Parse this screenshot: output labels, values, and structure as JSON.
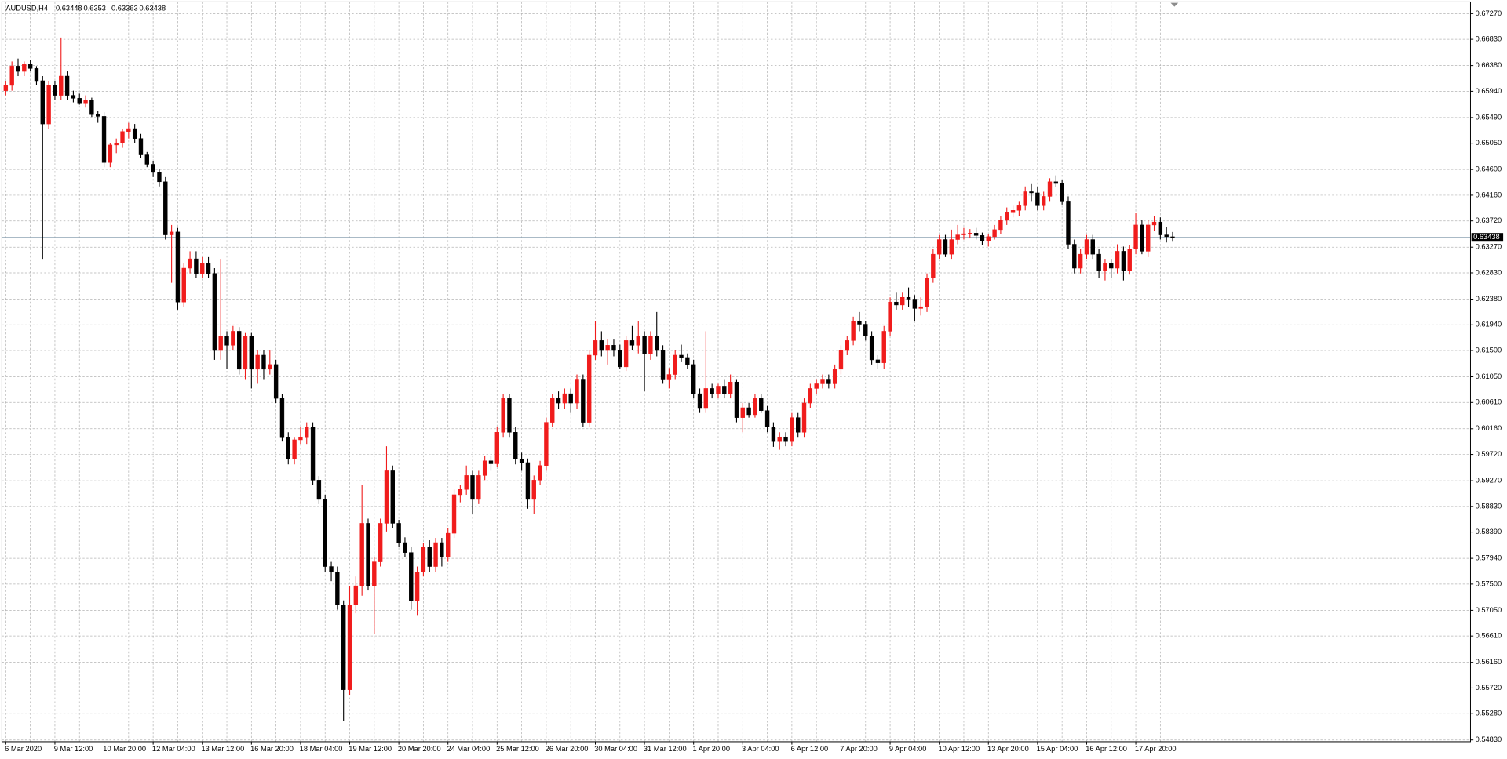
{
  "chart_data": {
    "type": "candlestick",
    "symbol": "AUDUSD,H4",
    "up_color": "#f01c1c",
    "down_color": "#000000",
    "last_line_color": "#8ea4b4",
    "grid": true,
    "ylim": [
      0.548,
      0.6747
    ],
    "yticks": [
      {
        "value": 0.6727,
        "label": "0.67270"
      },
      {
        "value": 0.6683,
        "label": "0.66830"
      },
      {
        "value": 0.6638,
        "label": "0.66380"
      },
      {
        "value": 0.6594,
        "label": "0.65940"
      },
      {
        "value": 0.6549,
        "label": "0.65490"
      },
      {
        "value": 0.6505,
        "label": "0.65050"
      },
      {
        "value": 0.646,
        "label": "0.64600"
      },
      {
        "value": 0.6416,
        "label": "0.64160"
      },
      {
        "value": 0.6372,
        "label": "0.63720"
      },
      {
        "value": 0.6327,
        "label": "0.63270"
      },
      {
        "value": 0.6283,
        "label": "0.62830"
      },
      {
        "value": 0.6238,
        "label": "0.62380"
      },
      {
        "value": 0.6194,
        "label": "0.61940"
      },
      {
        "value": 0.615,
        "label": "0.61500"
      },
      {
        "value": 0.6105,
        "label": "0.61050"
      },
      {
        "value": 0.6061,
        "label": "0.60610"
      },
      {
        "value": 0.6016,
        "label": "0.60160"
      },
      {
        "value": 0.5972,
        "label": "0.59720"
      },
      {
        "value": 0.5927,
        "label": "0.59270"
      },
      {
        "value": 0.5883,
        "label": "0.58830"
      },
      {
        "value": 0.5839,
        "label": "0.58390"
      },
      {
        "value": 0.5794,
        "label": "0.57940"
      },
      {
        "value": 0.575,
        "label": "0.57500"
      },
      {
        "value": 0.5705,
        "label": "0.57050"
      },
      {
        "value": 0.5661,
        "label": "0.56610"
      },
      {
        "value": 0.5616,
        "label": "0.56160"
      },
      {
        "value": 0.5572,
        "label": "0.55720"
      },
      {
        "value": 0.5528,
        "label": "0.55280"
      },
      {
        "value": 0.5483,
        "label": "0.54830"
      }
    ],
    "categories": [
      "6 Mar 2020",
      null,
      null,
      null,
      null,
      null,
      null,
      null,
      "9 Mar 12:00",
      null,
      null,
      null,
      null,
      null,
      null,
      null,
      "10 Mar 20:00",
      null,
      null,
      null,
      null,
      null,
      null,
      null,
      "12 Mar 04:00",
      null,
      null,
      null,
      null,
      null,
      null,
      null,
      "13 Mar 12:00",
      null,
      null,
      null,
      null,
      null,
      null,
      null,
      "16 Mar 20:00",
      null,
      null,
      null,
      null,
      null,
      null,
      null,
      "18 Mar 04:00",
      null,
      null,
      null,
      null,
      null,
      null,
      null,
      "19 Mar 12:00",
      null,
      null,
      null,
      null,
      null,
      null,
      null,
      "20 Mar 20:00",
      null,
      null,
      null,
      null,
      null,
      null,
      null,
      "24 Mar 04:00",
      null,
      null,
      null,
      null,
      null,
      null,
      null,
      "25 Mar 12:00",
      null,
      null,
      null,
      null,
      null,
      null,
      null,
      "26 Mar 20:00",
      null,
      null,
      null,
      null,
      null,
      null,
      null,
      "30 Mar 04:00",
      null,
      null,
      null,
      null,
      null,
      null,
      null,
      "31 Mar 12:00",
      null,
      null,
      null,
      null,
      null,
      null,
      null,
      "1 Apr 20:00",
      null,
      null,
      null,
      null,
      null,
      null,
      null,
      "3 Apr 04:00",
      null,
      null,
      null,
      null,
      null,
      null,
      null,
      "6 Apr 12:00",
      null,
      null,
      null,
      null,
      null,
      null,
      null,
      "7 Apr 20:00",
      null,
      null,
      null,
      null,
      null,
      null,
      null,
      "9 Apr 04:00",
      null,
      null,
      null,
      null,
      null,
      null,
      null,
      "10 Apr 12:00",
      null,
      null,
      null,
      null,
      null,
      null,
      null,
      "13 Apr 20:00",
      null,
      null,
      null,
      null,
      null,
      null,
      null,
      "15 Apr 04:00",
      null,
      null,
      null,
      null,
      null,
      null,
      null,
      "16 Apr 12:00",
      null,
      null,
      null,
      null,
      null,
      null,
      null,
      "17 Apr 20:00",
      null,
      null,
      null,
      null,
      null,
      null
    ],
    "ohlc": [
      [
        0.6595,
        0.6612,
        0.6587,
        0.6604
      ],
      [
        0.6604,
        0.6645,
        0.6595,
        0.6637
      ],
      [
        0.6637,
        0.665,
        0.662,
        0.6628
      ],
      [
        0.6628,
        0.6645,
        0.662,
        0.664
      ],
      [
        0.664,
        0.6648,
        0.6628,
        0.6633
      ],
      [
        0.6633,
        0.6637,
        0.6604,
        0.6612
      ],
      [
        0.6612,
        0.662,
        0.6307,
        0.6538
      ],
      [
        0.6538,
        0.6612,
        0.653,
        0.6604
      ],
      [
        0.6604,
        0.6612,
        0.6579,
        0.6587
      ],
      [
        0.6587,
        0.6686,
        0.6579,
        0.662
      ],
      [
        0.662,
        0.6628,
        0.6579,
        0.6587
      ],
      [
        0.6587,
        0.6595,
        0.6575,
        0.6582
      ],
      [
        0.6582,
        0.659,
        0.6571,
        0.6574
      ],
      [
        0.6574,
        0.6587,
        0.6566,
        0.6579
      ],
      [
        0.6579,
        0.6583,
        0.655,
        0.6554
      ],
      [
        0.6554,
        0.656,
        0.654,
        0.6551
      ],
      [
        0.6551,
        0.6558,
        0.6464,
        0.6472
      ],
      [
        0.6472,
        0.6505,
        0.6464,
        0.6502
      ],
      [
        0.6502,
        0.6513,
        0.6488,
        0.6505
      ],
      [
        0.6505,
        0.653,
        0.6497,
        0.6525
      ],
      [
        0.6525,
        0.654,
        0.6513,
        0.653
      ],
      [
        0.653,
        0.6538,
        0.6505,
        0.6513
      ],
      [
        0.6513,
        0.6521,
        0.648,
        0.6485
      ],
      [
        0.6485,
        0.649,
        0.6464,
        0.6469
      ],
      [
        0.6469,
        0.6475,
        0.6447,
        0.6455
      ],
      [
        0.6455,
        0.646,
        0.6431,
        0.6439
      ],
      [
        0.6439,
        0.6447,
        0.634,
        0.6348
      ],
      [
        0.6348,
        0.6365,
        0.6266,
        0.6353
      ],
      [
        0.6353,
        0.636,
        0.622,
        0.6233
      ],
      [
        0.6233,
        0.6299,
        0.6225,
        0.6291
      ],
      [
        0.6291,
        0.632,
        0.6282,
        0.6307
      ],
      [
        0.6307,
        0.632,
        0.6274,
        0.6282
      ],
      [
        0.6282,
        0.631,
        0.6274,
        0.6299
      ],
      [
        0.6299,
        0.631,
        0.6274,
        0.6282
      ],
      [
        0.6282,
        0.6291,
        0.6134,
        0.615
      ],
      [
        0.615,
        0.6307,
        0.6134,
        0.6175
      ],
      [
        0.6175,
        0.6183,
        0.6118,
        0.6159
      ],
      [
        0.6159,
        0.6192,
        0.615,
        0.6183
      ],
      [
        0.6183,
        0.619,
        0.6109,
        0.6118
      ],
      [
        0.6118,
        0.618,
        0.6101,
        0.6175
      ],
      [
        0.6175,
        0.618,
        0.6085,
        0.6118
      ],
      [
        0.6118,
        0.615,
        0.6093,
        0.6142
      ],
      [
        0.6142,
        0.615,
        0.6101,
        0.6118
      ],
      [
        0.6118,
        0.615,
        0.6109,
        0.6126
      ],
      [
        0.6126,
        0.6134,
        0.606,
        0.6068
      ],
      [
        0.6068,
        0.6076,
        0.5994,
        0.6002
      ],
      [
        0.6002,
        0.601,
        0.5955,
        0.5964
      ],
      [
        0.5964,
        0.6002,
        0.5955,
        0.5997
      ],
      [
        0.5997,
        0.6019,
        0.599,
        0.6002
      ],
      [
        0.6002,
        0.6027,
        0.599,
        0.6019
      ],
      [
        0.6019,
        0.6027,
        0.592,
        0.5928
      ],
      [
        0.5928,
        0.5935,
        0.5887,
        0.5895
      ],
      [
        0.5895,
        0.5903,
        0.5771,
        0.578
      ],
      [
        0.578,
        0.5788,
        0.5755,
        0.5771
      ],
      [
        0.5771,
        0.578,
        0.5706,
        0.5714
      ],
      [
        0.5714,
        0.5722,
        0.5516,
        0.5569
      ],
      [
        0.5569,
        0.5747,
        0.556,
        0.5714
      ],
      [
        0.5714,
        0.5763,
        0.57,
        0.5747
      ],
      [
        0.5747,
        0.592,
        0.573,
        0.5854
      ],
      [
        0.5854,
        0.5862,
        0.5739,
        0.5747
      ],
      [
        0.5747,
        0.5796,
        0.5664,
        0.5788
      ],
      [
        0.5788,
        0.5862,
        0.578,
        0.5854
      ],
      [
        0.5854,
        0.5986,
        0.584,
        0.5944
      ],
      [
        0.5944,
        0.5953,
        0.5846,
        0.5854
      ],
      [
        0.5854,
        0.586,
        0.5813,
        0.5821
      ],
      [
        0.5821,
        0.583,
        0.5796,
        0.5804
      ],
      [
        0.5804,
        0.5813,
        0.5706,
        0.5722
      ],
      [
        0.5722,
        0.578,
        0.5697,
        0.5771
      ],
      [
        0.5771,
        0.5821,
        0.5763,
        0.5813
      ],
      [
        0.5813,
        0.5825,
        0.5771,
        0.578
      ],
      [
        0.578,
        0.5829,
        0.5771,
        0.5821
      ],
      [
        0.5821,
        0.5829,
        0.578,
        0.5796
      ],
      [
        0.5796,
        0.5846,
        0.5788,
        0.5837
      ],
      [
        0.5837,
        0.5912,
        0.5829,
        0.5903
      ],
      [
        0.5903,
        0.592,
        0.589,
        0.5912
      ],
      [
        0.5912,
        0.5953,
        0.5903,
        0.5936
      ],
      [
        0.5936,
        0.5944,
        0.587,
        0.5895
      ],
      [
        0.5895,
        0.5944,
        0.5887,
        0.5936
      ],
      [
        0.5936,
        0.5969,
        0.5928,
        0.5961
      ],
      [
        0.5961,
        0.5969,
        0.5944,
        0.5956
      ],
      [
        0.5956,
        0.6019,
        0.595,
        0.601
      ],
      [
        0.601,
        0.6076,
        0.6002,
        0.6068
      ],
      [
        0.6068,
        0.6076,
        0.6002,
        0.601
      ],
      [
        0.601,
        0.6019,
        0.5955,
        0.5964
      ],
      [
        0.5964,
        0.5975,
        0.5944,
        0.5958
      ],
      [
        0.5958,
        0.5965,
        0.5879,
        0.5895
      ],
      [
        0.5895,
        0.5936,
        0.587,
        0.5928
      ],
      [
        0.5928,
        0.5961,
        0.592,
        0.5953
      ],
      [
        0.5953,
        0.6035,
        0.5944,
        0.6027
      ],
      [
        0.6027,
        0.6076,
        0.6019,
        0.6068
      ],
      [
        0.6068,
        0.608,
        0.605,
        0.606
      ],
      [
        0.606,
        0.6085,
        0.605,
        0.6076
      ],
      [
        0.6076,
        0.6085,
        0.6043,
        0.606
      ],
      [
        0.606,
        0.6109,
        0.605,
        0.6101
      ],
      [
        0.6101,
        0.6109,
        0.6019,
        0.6027
      ],
      [
        0.6027,
        0.615,
        0.6019,
        0.6142
      ],
      [
        0.6142,
        0.62,
        0.6134,
        0.6167
      ],
      [
        0.6167,
        0.6183,
        0.614,
        0.615
      ],
      [
        0.615,
        0.617,
        0.6126,
        0.6159
      ],
      [
        0.6159,
        0.617,
        0.614,
        0.615
      ],
      [
        0.615,
        0.616,
        0.6118,
        0.6122
      ],
      [
        0.6122,
        0.6175,
        0.6115,
        0.6167
      ],
      [
        0.6167,
        0.6192,
        0.615,
        0.6159
      ],
      [
        0.6159,
        0.62,
        0.6145,
        0.6175
      ],
      [
        0.6175,
        0.6183,
        0.608,
        0.6145
      ],
      [
        0.6145,
        0.6183,
        0.6134,
        0.6175
      ],
      [
        0.6175,
        0.6216,
        0.614,
        0.615
      ],
      [
        0.615,
        0.6159,
        0.6093,
        0.6101
      ],
      [
        0.6101,
        0.612,
        0.6085,
        0.6109
      ],
      [
        0.6109,
        0.615,
        0.6101,
        0.6142
      ],
      [
        0.6142,
        0.616,
        0.613,
        0.6138
      ],
      [
        0.6138,
        0.6145,
        0.6118,
        0.6126
      ],
      [
        0.6126,
        0.6134,
        0.6068,
        0.6076
      ],
      [
        0.6076,
        0.6085,
        0.6043,
        0.6052
      ],
      [
        0.6052,
        0.6183,
        0.6043,
        0.6085
      ],
      [
        0.6085,
        0.6093,
        0.6068,
        0.6076
      ],
      [
        0.6076,
        0.6093,
        0.6068,
        0.6089
      ],
      [
        0.6089,
        0.6101,
        0.6068,
        0.6076
      ],
      [
        0.6076,
        0.6109,
        0.6068,
        0.6096
      ],
      [
        0.6096,
        0.6101,
        0.6027,
        0.6035
      ],
      [
        0.6035,
        0.606,
        0.601,
        0.6052
      ],
      [
        0.6052,
        0.606,
        0.6035,
        0.604
      ],
      [
        0.604,
        0.6076,
        0.6035,
        0.6068
      ],
      [
        0.6068,
        0.6076,
        0.6043,
        0.6047
      ],
      [
        0.6047,
        0.6055,
        0.601,
        0.6019
      ],
      [
        0.6019,
        0.6027,
        0.5985,
        0.5994
      ],
      [
        0.5994,
        0.601,
        0.598,
        0.6002
      ],
      [
        0.6002,
        0.601,
        0.5986,
        0.5994
      ],
      [
        0.5994,
        0.6043,
        0.5986,
        0.6035
      ],
      [
        0.6035,
        0.6043,
        0.6002,
        0.601
      ],
      [
        0.601,
        0.6068,
        0.6002,
        0.606
      ],
      [
        0.606,
        0.6093,
        0.6052,
        0.6085
      ],
      [
        0.6085,
        0.6101,
        0.6076,
        0.6093
      ],
      [
        0.6093,
        0.6109,
        0.6085,
        0.6101
      ],
      [
        0.6101,
        0.6109,
        0.6085,
        0.6093
      ],
      [
        0.6093,
        0.6126,
        0.6085,
        0.6118
      ],
      [
        0.6118,
        0.6159,
        0.6109,
        0.615
      ],
      [
        0.615,
        0.6175,
        0.6142,
        0.6167
      ],
      [
        0.6167,
        0.6208,
        0.6159,
        0.62
      ],
      [
        0.62,
        0.6216,
        0.6183,
        0.6195
      ],
      [
        0.6195,
        0.62,
        0.6167,
        0.6175
      ],
      [
        0.6175,
        0.6183,
        0.6126,
        0.6134
      ],
      [
        0.6134,
        0.6142,
        0.6118,
        0.6129
      ],
      [
        0.6129,
        0.6192,
        0.6118,
        0.6183
      ],
      [
        0.6183,
        0.6241,
        0.6175,
        0.6233
      ],
      [
        0.6233,
        0.6249,
        0.622,
        0.6228
      ],
      [
        0.6228,
        0.6249,
        0.622,
        0.6241
      ],
      [
        0.6241,
        0.6258,
        0.6225,
        0.6238
      ],
      [
        0.6238,
        0.6245,
        0.62,
        0.6222
      ],
      [
        0.6222,
        0.6241,
        0.621,
        0.6225
      ],
      [
        0.6225,
        0.6282,
        0.6216,
        0.6274
      ],
      [
        0.6274,
        0.6324,
        0.6266,
        0.6315
      ],
      [
        0.6315,
        0.6348,
        0.6307,
        0.634
      ],
      [
        0.634,
        0.6348,
        0.631,
        0.6315
      ],
      [
        0.6315,
        0.6357,
        0.6307,
        0.634
      ],
      [
        0.634,
        0.6365,
        0.6332,
        0.6348
      ],
      [
        0.6348,
        0.636,
        0.634,
        0.635
      ],
      [
        0.635,
        0.6358,
        0.6342,
        0.6351
      ],
      [
        0.6351,
        0.636,
        0.634,
        0.6347
      ],
      [
        0.6347,
        0.6352,
        0.633,
        0.6337
      ],
      [
        0.6337,
        0.635,
        0.6328,
        0.6345
      ],
      [
        0.6345,
        0.6365,
        0.634,
        0.6357
      ],
      [
        0.6357,
        0.6381,
        0.635,
        0.6373
      ],
      [
        0.6373,
        0.6395,
        0.6365,
        0.6386
      ],
      [
        0.6386,
        0.6398,
        0.6378,
        0.639
      ],
      [
        0.639,
        0.6406,
        0.6381,
        0.6398
      ],
      [
        0.6398,
        0.6431,
        0.639,
        0.6422
      ],
      [
        0.6422,
        0.6435,
        0.6406,
        0.642
      ],
      [
        0.642,
        0.6431,
        0.639,
        0.6398
      ],
      [
        0.6398,
        0.6422,
        0.639,
        0.6414
      ],
      [
        0.6414,
        0.6445,
        0.6406,
        0.6439
      ],
      [
        0.6439,
        0.645,
        0.643,
        0.6436
      ],
      [
        0.6436,
        0.6442,
        0.64,
        0.6406
      ],
      [
        0.6406,
        0.6414,
        0.6324,
        0.6332
      ],
      [
        0.6332,
        0.634,
        0.6282,
        0.6291
      ],
      [
        0.6291,
        0.6324,
        0.6282,
        0.6315
      ],
      [
        0.6315,
        0.6348,
        0.6307,
        0.634
      ],
      [
        0.634,
        0.6348,
        0.6307,
        0.6315
      ],
      [
        0.6315,
        0.6324,
        0.6274,
        0.6287
      ],
      [
        0.6287,
        0.6307,
        0.627,
        0.6299
      ],
      [
        0.6299,
        0.6307,
        0.6274,
        0.6291
      ],
      [
        0.6291,
        0.6332,
        0.6282,
        0.632
      ],
      [
        0.632,
        0.6328,
        0.627,
        0.6287
      ],
      [
        0.6287,
        0.633,
        0.628,
        0.6324
      ],
      [
        0.6324,
        0.6385,
        0.6315,
        0.6365
      ],
      [
        0.6365,
        0.6373,
        0.6315,
        0.632
      ],
      [
        0.632,
        0.6373,
        0.631,
        0.6365
      ],
      [
        0.6365,
        0.6381,
        0.6355,
        0.637
      ],
      [
        0.637,
        0.6378,
        0.634,
        0.6348
      ],
      [
        0.6348,
        0.6362,
        0.6335,
        0.6345
      ],
      [
        0.63448,
        0.6353,
        0.63363,
        0.63438
      ]
    ]
  }
}
